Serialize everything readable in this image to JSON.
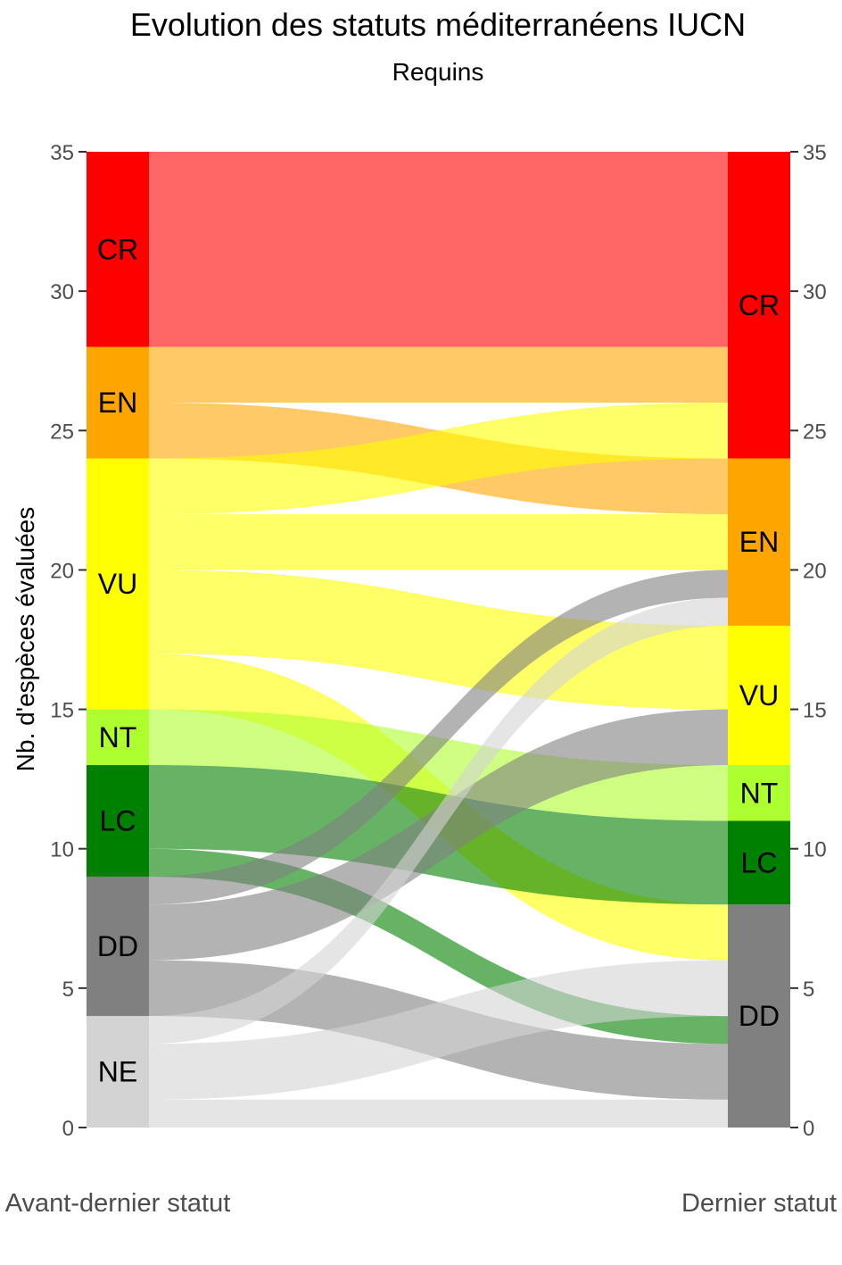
{
  "chart_data": {
    "type": "alluvial",
    "title": "Evolution des statuts méditerranéens IUCN",
    "subtitle": "Requins",
    "ylabel": "Nb. d'espèces évaluées",
    "xlabel": "",
    "axes": [
      "Avant-dernier statut",
      "Dernier statut"
    ],
    "ylim": [
      0,
      35
    ],
    "yticks": [
      0,
      5,
      10,
      15,
      20,
      25,
      30,
      35
    ],
    "grid": false,
    "categories": [
      "CR",
      "EN",
      "VU",
      "NT",
      "LC",
      "DD",
      "NE"
    ],
    "colors": {
      "CR": "#FF0000",
      "EN": "#FFA500",
      "VU": "#FFFF00",
      "NT": "#ADFF2F",
      "LC": "#008000",
      "DD": "#808080",
      "NE": "#D3D3D3"
    },
    "flows": [
      {
        "from": "CR",
        "to": "CR",
        "value": 7
      },
      {
        "from": "EN",
        "to": "CR",
        "value": 2
      },
      {
        "from": "EN",
        "to": "EN",
        "value": 2
      },
      {
        "from": "VU",
        "to": "CR",
        "value": 2
      },
      {
        "from": "VU",
        "to": "EN",
        "value": 2
      },
      {
        "from": "VU",
        "to": "VU",
        "value": 3
      },
      {
        "from": "VU",
        "to": "DD",
        "value": 2
      },
      {
        "from": "NT",
        "to": "NT",
        "value": 2
      },
      {
        "from": "LC",
        "to": "LC",
        "value": 3
      },
      {
        "from": "LC",
        "to": "DD",
        "value": 1
      },
      {
        "from": "DD",
        "to": "EN",
        "value": 1
      },
      {
        "from": "DD",
        "to": "VU",
        "value": 2
      },
      {
        "from": "DD",
        "to": "DD",
        "value": 2
      },
      {
        "from": "NE",
        "to": "EN",
        "value": 1
      },
      {
        "from": "NE",
        "to": "DD",
        "value": 1
      },
      {
        "from": "NE",
        "to": "DD",
        "value": 2
      }
    ],
    "flow_stack_order_from_bottom": {
      "left": [
        "NE>DD",
        "NE>DD",
        "NE>EN",
        "DD>DD",
        "DD>VU",
        "DD>EN",
        "LC>DD",
        "LC>LC",
        "NT>NT",
        "VU>DD",
        "VU>VU",
        "VU>EN",
        "VU>CR",
        "EN>EN",
        "EN>CR",
        "CR>CR"
      ],
      "right": [
        "NE>DD",
        "DD>DD",
        "LC>DD",
        "NE>DD",
        "VU>DD",
        "LC>LC",
        "NT>NT",
        "DD>VU",
        "VU>VU",
        "NE>EN",
        "DD>EN",
        "VU>EN",
        "EN>EN",
        "VU>CR",
        "EN>CR",
        "CR>CR"
      ]
    }
  }
}
